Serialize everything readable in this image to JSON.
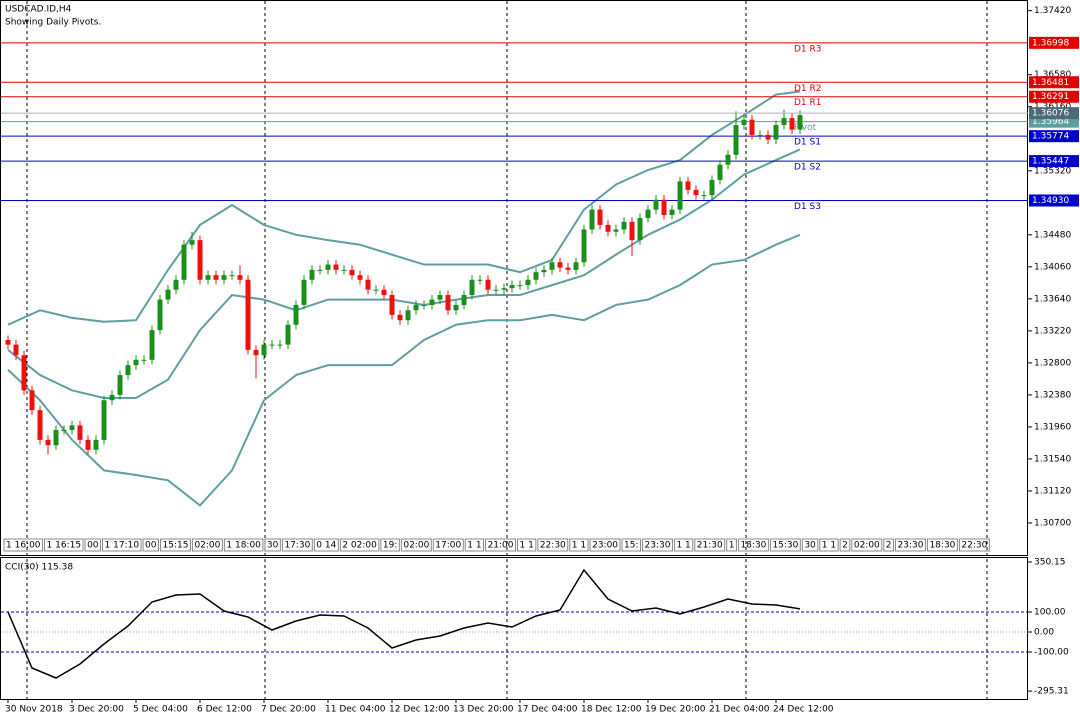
{
  "chart_data": [
    {
      "type": "candlestick",
      "title": "USDCAD.ID,H4",
      "subtitle": "Showing Daily Pivots.",
      "categories": [
        "30 Nov 2018",
        null,
        null,
        null,
        null,
        null,
        null,
        null,
        "3 Dec 20:00",
        null,
        null,
        null,
        null,
        null,
        null,
        null,
        "5 Dec 04:00",
        null,
        null,
        null,
        null,
        null,
        null,
        null,
        "6 Dec 12:00",
        null,
        null,
        null,
        null,
        null,
        null,
        null,
        "7 Dec 20:00",
        null,
        null,
        null,
        null,
        null,
        null,
        null,
        "11 Dec 04:00",
        null,
        null,
        null,
        null,
        null,
        null,
        null,
        "12 Dec 12:00",
        null,
        null,
        null,
        null,
        null,
        null,
        null,
        "13 Dec 20:00",
        null,
        null,
        null,
        null,
        null,
        null,
        null,
        "17 Dec 04:00",
        null,
        null,
        null,
        null,
        null,
        null,
        null,
        "18 Dec 12:00",
        null,
        null,
        null,
        null,
        null,
        null,
        null,
        "19 Dec 20:00",
        null,
        null,
        null,
        null,
        null,
        null,
        null,
        "21 Dec 04:00",
        null,
        null,
        null,
        null,
        null,
        null,
        null,
        "24 Dec 12:00",
        null,
        null,
        null
      ],
      "open": [
        1.331,
        1.3304,
        1.329,
        1.3244,
        1.3218,
        1.3179,
        1.3172,
        1.3192,
        1.3192,
        1.3198,
        1.3179,
        1.3166,
        1.3179,
        1.3231,
        1.3238,
        1.3264,
        1.3277,
        1.3284,
        1.3284,
        1.3323,
        1.3363,
        1.3376,
        1.3389,
        1.3435,
        1.3441,
        1.3389,
        1.3395,
        1.3389,
        1.3395,
        1.3395,
        1.3389,
        1.3297,
        1.329,
        1.3304,
        1.3304,
        1.3304,
        1.333,
        1.3356,
        1.3389,
        1.3402,
        1.3402,
        1.3409,
        1.3402,
        1.3402,
        1.3395,
        1.3389,
        1.3376,
        1.3376,
        1.3369,
        1.3343,
        1.3336,
        1.3349,
        1.3356,
        1.3356,
        1.3363,
        1.3369,
        1.3349,
        1.3356,
        1.3369,
        1.3389,
        1.3389,
        1.3376,
        1.3376,
        1.3378,
        1.3382,
        1.3382,
        1.3389,
        1.3399,
        1.3402,
        1.3412,
        1.3405,
        1.3402,
        1.3412,
        1.3455,
        1.3481,
        1.3461,
        1.3452,
        1.3455,
        1.3465,
        1.3441,
        1.347,
        1.3481,
        1.3494,
        1.3474,
        1.3481,
        1.3518,
        1.3507,
        1.35,
        1.35,
        1.352,
        1.354,
        1.3553,
        1.3592,
        1.3599,
        1.3579,
        1.3579,
        1.3573,
        1.3592,
        1.3601,
        1.3586
      ],
      "high": [
        1.3316,
        1.331,
        1.3296,
        1.325,
        1.3224,
        1.3185,
        1.3198,
        1.3198,
        1.3204,
        1.3204,
        1.3185,
        1.3185,
        1.3237,
        1.3244,
        1.327,
        1.3283,
        1.329,
        1.329,
        1.3329,
        1.3369,
        1.3382,
        1.3395,
        1.3441,
        1.3452,
        1.3447,
        1.3401,
        1.3401,
        1.3401,
        1.3401,
        1.3408,
        1.3395,
        1.3303,
        1.331,
        1.331,
        1.331,
        1.3336,
        1.3362,
        1.3395,
        1.3408,
        1.3408,
        1.3415,
        1.3415,
        1.3408,
        1.3408,
        1.3401,
        1.3395,
        1.3382,
        1.3382,
        1.3375,
        1.3349,
        1.3355,
        1.3362,
        1.3362,
        1.3369,
        1.3375,
        1.3375,
        1.3362,
        1.3375,
        1.3395,
        1.3395,
        1.3395,
        1.3382,
        1.3384,
        1.3388,
        1.3388,
        1.3395,
        1.3405,
        1.3408,
        1.3418,
        1.3418,
        1.3411,
        1.3418,
        1.3461,
        1.3487,
        1.3487,
        1.3467,
        1.3461,
        1.3471,
        1.3471,
        1.3476,
        1.3487,
        1.35,
        1.35,
        1.3487,
        1.3524,
        1.3524,
        1.3513,
        1.3506,
        1.3526,
        1.3546,
        1.3559,
        1.361,
        1.3605,
        1.3605,
        1.3585,
        1.3585,
        1.3598,
        1.3612,
        1.3607,
        1.3611
      ],
      "low": [
        1.3298,
        1.3284,
        1.3238,
        1.3212,
        1.3173,
        1.316,
        1.3166,
        1.3186,
        1.3186,
        1.3173,
        1.316,
        1.316,
        1.3173,
        1.3225,
        1.3232,
        1.3258,
        1.3271,
        1.3278,
        1.3278,
        1.3317,
        1.3357,
        1.337,
        1.3383,
        1.3429,
        1.3383,
        1.3383,
        1.3383,
        1.3383,
        1.3389,
        1.3383,
        1.3291,
        1.326,
        1.3284,
        1.3298,
        1.3298,
        1.3298,
        1.3324,
        1.335,
        1.3383,
        1.3396,
        1.3396,
        1.3396,
        1.3396,
        1.3389,
        1.3383,
        1.337,
        1.337,
        1.3363,
        1.3337,
        1.333,
        1.333,
        1.3343,
        1.335,
        1.335,
        1.3357,
        1.3343,
        1.3343,
        1.335,
        1.3363,
        1.3383,
        1.337,
        1.337,
        1.337,
        1.3372,
        1.3376,
        1.3376,
        1.3383,
        1.3393,
        1.3396,
        1.3399,
        1.3396,
        1.3396,
        1.3406,
        1.3449,
        1.3455,
        1.3446,
        1.3446,
        1.3449,
        1.342,
        1.3435,
        1.3464,
        1.3475,
        1.3468,
        1.3468,
        1.3475,
        1.3501,
        1.3494,
        1.3494,
        1.3494,
        1.3514,
        1.3534,
        1.3547,
        1.3586,
        1.3573,
        1.3573,
        1.3567,
        1.3567,
        1.3586,
        1.358,
        1.358
      ],
      "close": [
        1.3304,
        1.329,
        1.3244,
        1.3218,
        1.3179,
        1.3172,
        1.3192,
        1.3192,
        1.3198,
        1.3179,
        1.3166,
        1.3179,
        1.3231,
        1.3238,
        1.3264,
        1.3277,
        1.3284,
        1.3284,
        1.3323,
        1.3363,
        1.3376,
        1.3389,
        1.3435,
        1.3441,
        1.3389,
        1.3395,
        1.3389,
        1.3395,
        1.3395,
        1.3389,
        1.3297,
        1.329,
        1.3304,
        1.3304,
        1.3304,
        1.333,
        1.3356,
        1.3389,
        1.3402,
        1.3402,
        1.3409,
        1.3402,
        1.3402,
        1.3395,
        1.3389,
        1.3376,
        1.3376,
        1.3369,
        1.3343,
        1.3336,
        1.3349,
        1.3356,
        1.3356,
        1.3363,
        1.3369,
        1.3349,
        1.3356,
        1.3369,
        1.3389,
        1.3389,
        1.3376,
        1.3376,
        1.3378,
        1.3382,
        1.3382,
        1.3389,
        1.3399,
        1.3402,
        1.3412,
        1.3405,
        1.3402,
        1.3412,
        1.3455,
        1.3481,
        1.3461,
        1.3452,
        1.3455,
        1.3465,
        1.3441,
        1.347,
        1.3481,
        1.3494,
        1.3474,
        1.3481,
        1.3518,
        1.3507,
        1.35,
        1.35,
        1.352,
        1.354,
        1.3553,
        1.3592,
        1.3599,
        1.3579,
        1.3579,
        1.3573,
        1.3592,
        1.3601,
        1.3586,
        1.3605
      ],
      "up_color": "#1a8f1a",
      "down_color": "#f01010",
      "ylim": [
        1.3028,
        1.3756
      ],
      "yticks": [
        {
          "value": 1.3742,
          "label": "1.37420"
        },
        {
          "value": 1.3658,
          "label": "1.36580"
        },
        {
          "value": 1.3616,
          "label": "1.36160"
        },
        {
          "value": 1.3532,
          "label": "1.35320"
        },
        {
          "value": 1.3448,
          "label": "1.34480"
        },
        {
          "value": 1.3406,
          "label": "1.34060"
        },
        {
          "value": 1.3364,
          "label": "1.33640"
        },
        {
          "value": 1.3322,
          "label": "1.33220"
        },
        {
          "value": 1.328,
          "label": "1.32800"
        },
        {
          "value": 1.3238,
          "label": "1.32380"
        },
        {
          "value": 1.3196,
          "label": "1.31960"
        },
        {
          "value": 1.3154,
          "label": "1.31540"
        },
        {
          "value": 1.3112,
          "label": "1.31120"
        },
        {
          "value": 1.307,
          "label": "1.30700"
        }
      ],
      "band_color": "#5f9ea0",
      "band_x": [
        0,
        4,
        8,
        12,
        16,
        20,
        24,
        28,
        32,
        36,
        40,
        44,
        48,
        52,
        56,
        60,
        64,
        68,
        72,
        76,
        80,
        84,
        88,
        92,
        96,
        99
      ],
      "bands": [
        {
          "values": [
            1.333,
            1.3349,
            1.3339,
            1.3334,
            1.3336,
            1.3402,
            1.3461,
            1.3487,
            1.3461,
            1.3448,
            1.3441,
            1.3435,
            1.3422,
            1.3409,
            1.3409,
            1.3409,
            1.3399,
            1.3415,
            1.3481,
            1.3514,
            1.3533,
            1.3546,
            1.3579,
            1.3605,
            1.3632,
            1.3636
          ]
        },
        {
          "values": [
            1.3297,
            1.3264,
            1.3244,
            1.3234,
            1.3234,
            1.3258,
            1.3323,
            1.3369,
            1.3363,
            1.3349,
            1.3363,
            1.3363,
            1.3363,
            1.3356,
            1.3363,
            1.3369,
            1.3369,
            1.3382,
            1.3395,
            1.3422,
            1.3448,
            1.3468,
            1.3494,
            1.3527,
            1.3546,
            1.356
          ]
        },
        {
          "values": [
            1.3271,
            1.3231,
            1.3179,
            1.3139,
            1.3133,
            1.3126,
            1.3093,
            1.3139,
            1.3231,
            1.3264,
            1.3277,
            1.3277,
            1.3277,
            1.331,
            1.333,
            1.3336,
            1.3336,
            1.3343,
            1.3336,
            1.3356,
            1.3363,
            1.3382,
            1.3409,
            1.3415,
            1.3435,
            1.3448
          ]
        }
      ],
      "pivots": [
        {
          "name": "D1 R3",
          "value": 1.36998,
          "color": "#e00000"
        },
        {
          "name": "D1 R2",
          "value": 1.36481,
          "color": "#e00000"
        },
        {
          "name": "D1 R1",
          "value": 1.36291,
          "color": "#e00000"
        },
        {
          "name": "Pivot",
          "value": 1.35964,
          "color": "#5f9ea0"
        },
        {
          "name": "D1 S1",
          "value": 1.35774,
          "color": "#0000cd"
        },
        {
          "name": "D1 S2",
          "value": 1.35447,
          "color": "#0000cd"
        },
        {
          "name": "D1 S3",
          "value": {
            "value": 1.3493,
            "label": "1.34930"
          },
          "color": "#0000cd"
        }
      ],
      "price_labels": [
        {
          "value": 1.36076,
          "color": "#4a6a78"
        }
      ],
      "session_labels": [
        "1 16:00",
        "1 16:15",
        "00",
        "1 17:10",
        "00",
        "15:15",
        "02:00",
        "1 18:00",
        "30",
        "17:30",
        "0 14",
        "2 02:00",
        "19:",
        "02:00",
        "17:00",
        "1 1",
        "21:00",
        "1 1",
        "22:30",
        "1 1",
        "23:00",
        "15:",
        "23:30",
        "1 1",
        "21:30",
        "1",
        "18:30",
        "15:30",
        "30",
        "1 1",
        "2",
        "02:00",
        "2",
        "23:30",
        "18:30",
        "22:30"
      ]
    },
    {
      "type": "line",
      "title": "CCI(30) 115.38",
      "color": "#000000",
      "x": [
        0,
        3,
        6,
        9,
        12,
        15,
        18,
        21,
        24,
        27,
        30,
        33,
        36,
        39,
        42,
        45,
        48,
        51,
        54,
        57,
        60,
        63,
        66,
        69,
        72,
        75,
        78,
        81,
        84,
        87,
        90,
        93,
        96,
        99
      ],
      "values": [
        100,
        -180,
        -230,
        -160,
        -60,
        30,
        150,
        185,
        190,
        105,
        75,
        10,
        55,
        85,
        80,
        20,
        -80,
        -40,
        -20,
        20,
        45,
        25,
        80,
        110,
        310,
        165,
        105,
        120,
        90,
        125,
        165,
        140,
        135,
        115.38
      ],
      "ylim": [
        -340,
        375
      ],
      "yticks": [
        {
          "value": 350.15,
          "label": "350.15"
        },
        {
          "value": 100,
          "label": "100.00"
        },
        {
          "value": 0,
          "label": "0.00"
        },
        {
          "value": -100,
          "label": "-100.00"
        },
        {
          "value": -295.31,
          "label": "-295.31"
        }
      ],
      "levels": [
        100,
        0,
        -100
      ]
    }
  ]
}
